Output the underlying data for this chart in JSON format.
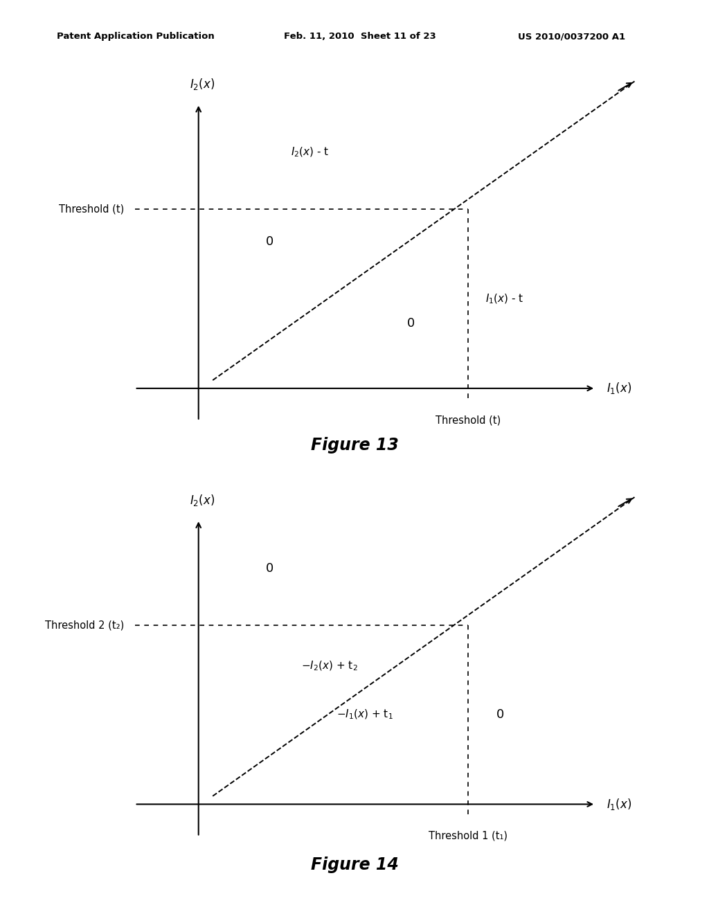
{
  "background_color": "#ffffff",
  "header_line1": "Patent Application Publication",
  "header_line2": "Feb. 11, 2010",
  "header_line3": "Sheet 11 of 23",
  "header_line4": "US 2010/0037200 A1",
  "fig13": {
    "title": "Figure 13",
    "y_axis_label": "I₂(x)",
    "x_axis_label": "I₁(x)",
    "threshold_label_x": "Threshold (t)",
    "threshold_label_y": "Threshold (t)",
    "label_I2x_minus_t": "I₂(x) - t",
    "label_I1x_minus_t": "I₁(x) - t",
    "label_zero_upper": "0",
    "label_zero_lower": "0"
  },
  "fig14": {
    "title": "Figure 14",
    "y_axis_label": "I₂(x)",
    "x_axis_label": "I₁(x)",
    "threshold_label_x": "Threshold 1 (t₁)",
    "threshold_label_y": "Threshold 2 (t₂)",
    "label_neg_I2x_plus_t2": "-I₂(x) + t₂",
    "label_neg_I1x_plus_t1": "-I₁(x) + t₁",
    "label_zero_upper": "0",
    "label_zero_lower": "0"
  }
}
